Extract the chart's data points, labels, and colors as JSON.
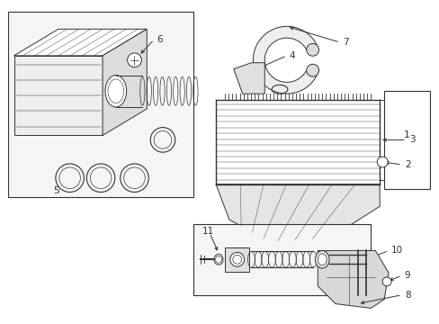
{
  "background_color": "#ffffff",
  "fig_width": 4.89,
  "fig_height": 3.6,
  "dpi": 100,
  "line_color": "#333333",
  "fill_light": "#f5f5f5",
  "fill_mid": "#e8e8e8",
  "fill_dark": "#cccccc"
}
